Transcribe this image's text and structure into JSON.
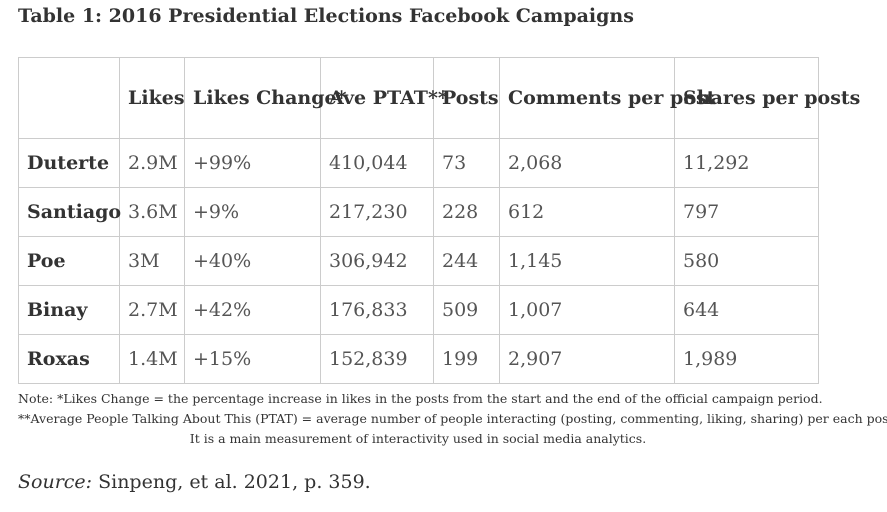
{
  "caption": "Table 1: 2016 Presidential Elections Facebook Campaigns",
  "table": {
    "headers": [
      "",
      "Likes",
      "Likes Change*",
      "Ave PTAT**",
      "Posts",
      "Comments per post",
      "Shares per posts"
    ],
    "rows": [
      {
        "name": "Duterte",
        "likes": "2.9M",
        "likes_change": "+99%",
        "ave_ptat": "410,044",
        "posts": "73",
        "comments": "2,068",
        "shares": "11,292"
      },
      {
        "name": "Santiago",
        "likes": "3.6M",
        "likes_change": "+9%",
        "ave_ptat": "217,230",
        "posts": "228",
        "comments": "612",
        "shares": "797"
      },
      {
        "name": "Poe",
        "likes": "3M",
        "likes_change": "+40%",
        "ave_ptat": "306,942",
        "posts": "244",
        "comments": "1,145",
        "shares": "580"
      },
      {
        "name": "Binay",
        "likes": "2.7M",
        "likes_change": "+42%",
        "ave_ptat": "176,833",
        "posts": "509",
        "comments": "1,007",
        "shares": "644"
      },
      {
        "name": "Roxas",
        "likes": "1.4M",
        "likes_change": "+15%",
        "ave_ptat": "152,839",
        "posts": "199",
        "comments": "2,907",
        "shares": "1,989"
      }
    ]
  },
  "notes": [
    "Note: *Likes Change = the percentage increase in likes in the posts from the start and the end of the official campaign period.",
    "**Average People Talking About This (PTAT) = average number of people interacting (posting, commenting, liking, sharing) per each post.",
    "It is a main measurement of interactivity used in social media analytics."
  ],
  "source": {
    "label": "Source:",
    "text": " Sinpeng, et al. 2021, p. 359."
  }
}
